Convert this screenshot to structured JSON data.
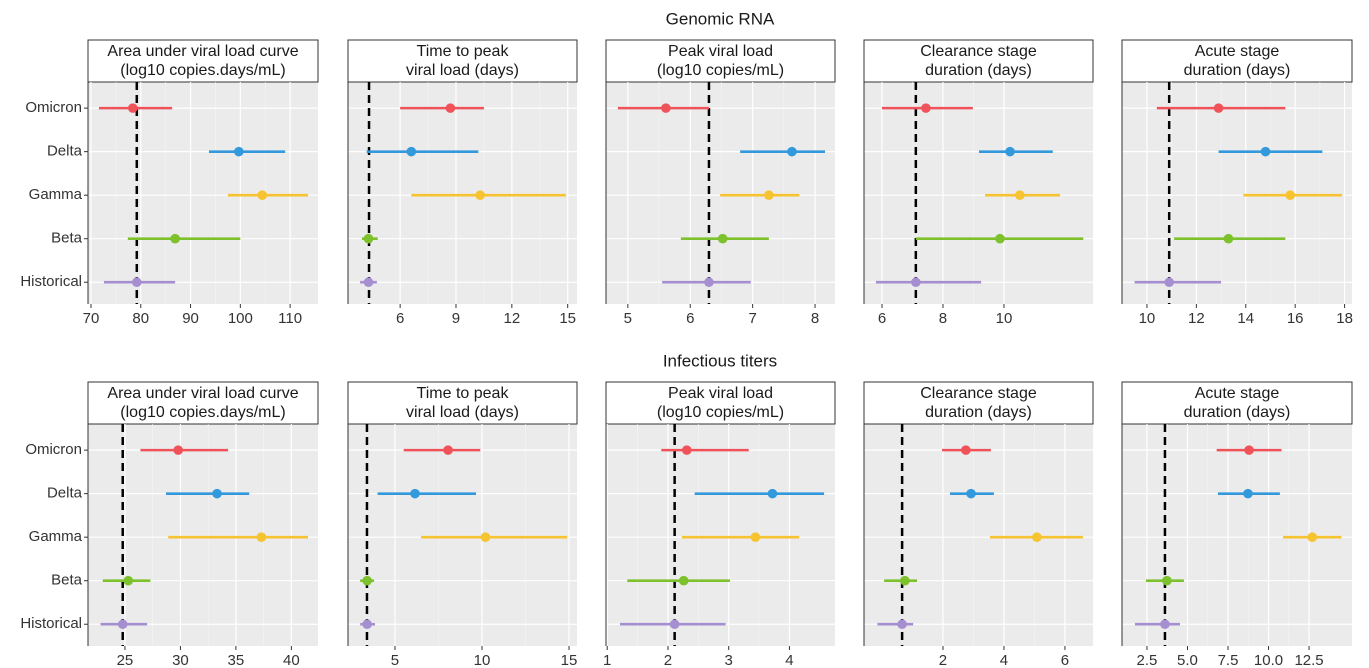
{
  "row_titles": [
    "Genomic RNA",
    "Infectious titers"
  ],
  "chart_data": [
    {
      "type": "forest",
      "title": [
        "Area under viral load curve",
        "(log10 copies.days/mL)"
      ],
      "categories": [
        "Omicron",
        "Delta",
        "Gamma",
        "Beta",
        "Historical"
      ],
      "values": [
        78.4,
        99.7,
        104.4,
        86.9,
        79.2
      ],
      "lower": [
        71.6,
        93.7,
        97.5,
        77.4,
        72.6
      ],
      "upper": [
        86.3,
        109,
        113.6,
        100,
        86.9
      ],
      "colors": [
        "#f0525a",
        "#3399dd",
        "#f7c331",
        "#7dc12d",
        "#a58fd0"
      ],
      "ref": 79.2,
      "xlim": [
        69.4,
        115.6
      ],
      "xticks": [
        70,
        80,
        90,
        100,
        110
      ],
      "grid": true
    },
    {
      "type": "forest",
      "title": [
        "Time to peak",
        "viral load (days)"
      ],
      "values": [
        8.7,
        6.6,
        10.3,
        4.3,
        4.3
      ],
      "lower": [
        6.0,
        4.2,
        6.6,
        3.95,
        3.85
      ],
      "upper": [
        10.5,
        10.2,
        14.9,
        4.8,
        4.75
      ],
      "colors": [
        "#f0525a",
        "#3399dd",
        "#f7c331",
        "#7dc12d",
        "#a58fd0"
      ],
      "ref": 4.33,
      "xlim": [
        3.2,
        15.5
      ],
      "xticks": [
        6,
        9,
        12,
        15
      ],
      "grid": true
    },
    {
      "type": "forest",
      "title": [
        "Peak viral load",
        "(log10 copies/mL)"
      ],
      "values": [
        5.61,
        7.63,
        7.26,
        6.52,
        6.3
      ],
      "lower": [
        4.84,
        6.8,
        6.48,
        5.85,
        5.55
      ],
      "upper": [
        6.3,
        8.16,
        7.75,
        7.26,
        6.97
      ],
      "colors": [
        "#f0525a",
        "#3399dd",
        "#f7c331",
        "#7dc12d",
        "#a58fd0"
      ],
      "ref": 6.3,
      "xlim": [
        4.65,
        8.32
      ],
      "xticks": [
        5,
        6,
        7,
        8
      ],
      "grid": true
    },
    {
      "type": "forest",
      "title": [
        "Clearance stage",
        "duration (days)"
      ],
      "values": [
        7.44,
        10.2,
        10.52,
        9.87,
        7.11
      ],
      "lower": [
        6.0,
        9.18,
        9.38,
        7.11,
        5.8
      ],
      "upper": [
        8.98,
        11.6,
        11.84,
        12.6,
        9.25
      ],
      "colors": [
        "#f0525a",
        "#3399dd",
        "#f7c331",
        "#7dc12d",
        "#a58fd0"
      ],
      "ref": 7.11,
      "xlim": [
        5.41,
        12.92
      ],
      "xticks": [
        6,
        8,
        10
      ],
      "grid": true
    },
    {
      "type": "forest",
      "title": [
        "Acute stage",
        "duration (days)"
      ],
      "values": [
        12.9,
        14.8,
        15.8,
        13.3,
        10.9
      ],
      "lower": [
        10.4,
        12.9,
        13.9,
        11.1,
        9.5
      ],
      "upper": [
        15.6,
        17.1,
        17.9,
        15.6,
        13.0
      ],
      "colors": [
        "#f0525a",
        "#3399dd",
        "#f7c331",
        "#7dc12d",
        "#a58fd0"
      ],
      "ref": 10.9,
      "xlim": [
        8.99,
        18.3
      ],
      "xticks": [
        10,
        12,
        14,
        16,
        18
      ],
      "grid": true
    },
    {
      "type": "forest",
      "title": [
        "Area under viral load curve",
        "(log10 copies.days/mL)"
      ],
      "categories": [
        "Omicron",
        "Delta",
        "Gamma",
        "Beta",
        "Historical"
      ],
      "values": [
        29.8,
        33.3,
        37.3,
        25.3,
        24.8
      ],
      "lower": [
        26.4,
        28.7,
        28.9,
        23.0,
        22.8
      ],
      "upper": [
        34.3,
        36.2,
        41.5,
        27.3,
        27.0
      ],
      "colors": [
        "#f0525a",
        "#3399dd",
        "#f7c331",
        "#7dc12d",
        "#a58fd0"
      ],
      "ref": 24.8,
      "xlim": [
        21.67,
        42.4
      ],
      "xticks": [
        25,
        30,
        35,
        40
      ],
      "grid": true
    },
    {
      "type": "forest",
      "title": [
        "Time to peak",
        "viral load (days)"
      ],
      "values": [
        8.05,
        6.15,
        10.2,
        3.4,
        3.4
      ],
      "lower": [
        5.5,
        4.0,
        6.5,
        3.0,
        3.0
      ],
      "upper": [
        9.9,
        9.66,
        14.9,
        3.8,
        3.85
      ],
      "colors": [
        "#f0525a",
        "#3399dd",
        "#f7c331",
        "#7dc12d",
        "#a58fd0"
      ],
      "ref": 3.39,
      "xlim": [
        2.3,
        15.46
      ],
      "xticks": [
        5,
        10,
        15
      ],
      "grid": true
    },
    {
      "type": "forest",
      "title": [
        "Peak viral load",
        "(log10 copies/mL)"
      ],
      "values": [
        2.31,
        3.72,
        3.44,
        2.26,
        2.11
      ],
      "lower": [
        1.89,
        2.44,
        2.23,
        1.33,
        1.21
      ],
      "upper": [
        3.33,
        4.57,
        4.16,
        3.02,
        2.95
      ],
      "colors": [
        "#f0525a",
        "#3399dd",
        "#f7c331",
        "#7dc12d",
        "#a58fd0"
      ],
      "ref": 2.11,
      "xlim": [
        0.98,
        4.75
      ],
      "xticks": [
        1,
        2,
        3,
        4
      ],
      "grid": true
    },
    {
      "type": "forest",
      "title": [
        "Clearance stage",
        "duration (days)"
      ],
      "values": [
        2.75,
        2.92,
        5.08,
        0.75,
        0.66
      ],
      "lower": [
        1.97,
        2.23,
        3.54,
        0.07,
        -0.15
      ],
      "upper": [
        3.57,
        3.67,
        6.59,
        1.15,
        1.02
      ],
      "colors": [
        "#f0525a",
        "#3399dd",
        "#f7c331",
        "#7dc12d",
        "#a58fd0"
      ],
      "ref": 0.66,
      "xlim": [
        -0.59,
        6.92
      ],
      "xticks": [
        2,
        4,
        6
      ],
      "grid": true
    },
    {
      "type": "forest",
      "title": [
        "Acute stage",
        "duration (days)"
      ],
      "values": [
        8.8,
        8.73,
        12.7,
        3.73,
        3.61
      ],
      "lower": [
        6.8,
        6.88,
        10.9,
        2.44,
        1.76
      ],
      "upper": [
        10.8,
        10.7,
        14.5,
        4.78,
        4.54
      ],
      "colors": [
        "#f0525a",
        "#3399dd",
        "#f7c331",
        "#7dc12d",
        "#a58fd0"
      ],
      "ref": 3.61,
      "xlim": [
        0.96,
        15.15
      ],
      "xticks": [
        {
          "value": 2.5,
          "label": "2.5"
        },
        {
          "value": 5,
          "label": "5.0"
        },
        {
          "value": 7.5,
          "label": "7.5"
        },
        {
          "value": 10,
          "label": "10.0"
        },
        {
          "value": 12.5,
          "label": "12.5"
        }
      ],
      "grid": true
    }
  ]
}
